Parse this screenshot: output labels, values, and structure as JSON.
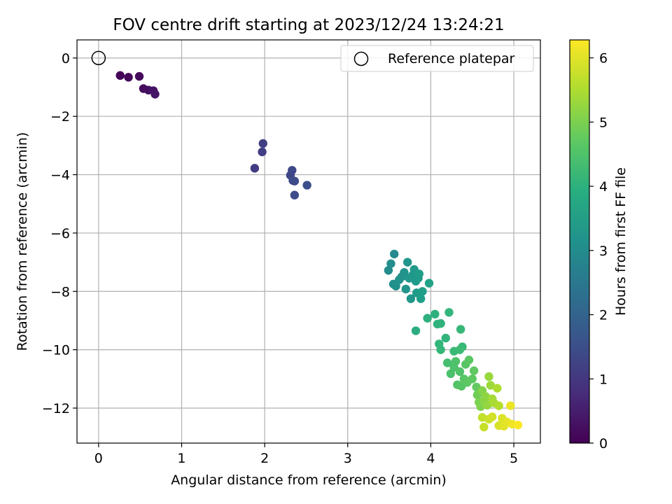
{
  "chart_data": {
    "type": "scatter",
    "title": "FOV centre drift starting at 2023/12/24 13:24:21",
    "xlabel": "Angular distance from reference (arcmin)",
    "ylabel": "Rotation from reference (arcmin)",
    "xlim": [
      -0.26,
      5.32
    ],
    "ylim": [
      -13.2,
      0.62
    ],
    "xticks": [
      0,
      1,
      2,
      3,
      4,
      5
    ],
    "yticks": [
      0,
      -2,
      -4,
      -6,
      -8,
      -10,
      -12
    ],
    "grid": true,
    "legend": {
      "position": "top-right",
      "entries": [
        "Reference platepar"
      ]
    },
    "reference": {
      "x": 0,
      "y": 0
    },
    "colorbar": {
      "label": "Hours from first FF file",
      "colormap": "viridis",
      "range": [
        0,
        6.28
      ],
      "ticks": [
        0,
        1,
        2,
        3,
        4,
        5,
        6
      ]
    },
    "points": [
      [
        0.26,
        -0.6,
        0.05
      ],
      [
        0.36,
        -0.66,
        0.1
      ],
      [
        0.49,
        -0.63,
        0.15
      ],
      [
        0.54,
        -1.05,
        0.2
      ],
      [
        0.6,
        -1.1,
        0.25
      ],
      [
        0.66,
        -1.12,
        0.3
      ],
      [
        0.68,
        -1.24,
        0.35
      ],
      [
        1.88,
        -3.78,
        1.1
      ],
      [
        1.97,
        -3.22,
        1.15
      ],
      [
        1.98,
        -2.93,
        1.2
      ],
      [
        2.31,
        -4.02,
        1.3
      ],
      [
        2.33,
        -3.85,
        1.35
      ],
      [
        2.36,
        -4.22,
        1.4
      ],
      [
        2.34,
        -4.2,
        1.42
      ],
      [
        2.36,
        -4.7,
        1.45
      ],
      [
        2.51,
        -4.36,
        1.5
      ],
      [
        3.56,
        -6.72,
        3.0
      ],
      [
        3.49,
        -7.28,
        3.05
      ],
      [
        3.52,
        -7.05,
        3.1
      ],
      [
        3.55,
        -7.75,
        3.12
      ],
      [
        3.58,
        -7.82,
        3.15
      ],
      [
        3.62,
        -7.6,
        3.18
      ],
      [
        3.65,
        -7.5,
        3.2
      ],
      [
        3.68,
        -7.35,
        3.22
      ],
      [
        3.7,
        -7.92,
        3.25
      ],
      [
        3.72,
        -7.0,
        3.28
      ],
      [
        3.74,
        -7.55,
        3.3
      ],
      [
        3.76,
        -8.25,
        3.32
      ],
      [
        3.78,
        -7.45,
        3.35
      ],
      [
        3.8,
        -7.25,
        3.37
      ],
      [
        3.82,
        -7.65,
        3.4
      ],
      [
        3.83,
        -8.05,
        3.42
      ],
      [
        3.85,
        -7.55,
        3.45
      ],
      [
        3.86,
        -7.4,
        3.47
      ],
      [
        3.88,
        -8.25,
        3.5
      ],
      [
        3.9,
        -8.0,
        3.52
      ],
      [
        3.98,
        -7.72,
        3.6
      ],
      [
        3.82,
        -9.35,
        3.9
      ],
      [
        3.96,
        -8.92,
        3.95
      ],
      [
        4.05,
        -8.78,
        4.0
      ],
      [
        4.08,
        -9.12,
        4.02
      ],
      [
        4.12,
        -9.1,
        4.05
      ],
      [
        4.18,
        -9.6,
        4.1
      ],
      [
        4.22,
        -8.72,
        4.12
      ],
      [
        4.1,
        -9.8,
        4.15
      ],
      [
        4.12,
        -10.0,
        4.18
      ],
      [
        4.36,
        -9.3,
        4.2
      ],
      [
        4.38,
        -9.9,
        4.22
      ],
      [
        4.28,
        -10.05,
        4.25
      ],
      [
        4.35,
        -10.0,
        4.28
      ],
      [
        4.2,
        -10.45,
        4.4
      ],
      [
        4.24,
        -10.82,
        4.45
      ],
      [
        4.28,
        -10.6,
        4.48
      ],
      [
        4.3,
        -10.4,
        4.5
      ],
      [
        4.35,
        -10.75,
        4.52
      ],
      [
        4.32,
        -11.2,
        4.55
      ],
      [
        4.37,
        -11.25,
        4.58
      ],
      [
        4.4,
        -11.0,
        4.6
      ],
      [
        4.42,
        -10.5,
        4.62
      ],
      [
        4.46,
        -10.35,
        4.64
      ],
      [
        4.44,
        -11.12,
        4.66
      ],
      [
        4.5,
        -11.0,
        4.68
      ],
      [
        4.52,
        -10.72,
        4.7
      ],
      [
        4.55,
        -11.28,
        4.72
      ],
      [
        4.56,
        -11.55,
        4.9
      ],
      [
        4.58,
        -11.8,
        5.0
      ],
      [
        4.6,
        -11.95,
        5.05
      ],
      [
        4.62,
        -11.4,
        5.1
      ],
      [
        4.64,
        -11.75,
        5.15
      ],
      [
        4.66,
        -11.6,
        5.2
      ],
      [
        4.68,
        -11.9,
        5.25
      ],
      [
        4.7,
        -10.92,
        5.3
      ],
      [
        4.72,
        -11.22,
        5.35
      ],
      [
        4.74,
        -11.68,
        5.4
      ],
      [
        4.76,
        -11.82,
        5.45
      ],
      [
        4.8,
        -11.32,
        5.5
      ],
      [
        4.82,
        -11.92,
        5.55
      ],
      [
        4.62,
        -12.32,
        5.7
      ],
      [
        4.64,
        -12.65,
        5.75
      ],
      [
        4.7,
        -12.38,
        5.8
      ],
      [
        4.74,
        -12.3,
        5.85
      ],
      [
        4.82,
        -12.6,
        5.9
      ],
      [
        4.86,
        -12.35,
        5.95
      ],
      [
        4.88,
        -12.62,
        6.0
      ],
      [
        4.92,
        -12.48,
        6.05
      ],
      [
        4.96,
        -11.92,
        6.1
      ],
      [
        4.98,
        -12.55,
        6.15
      ],
      [
        5.05,
        -12.58,
        6.25
      ]
    ]
  }
}
